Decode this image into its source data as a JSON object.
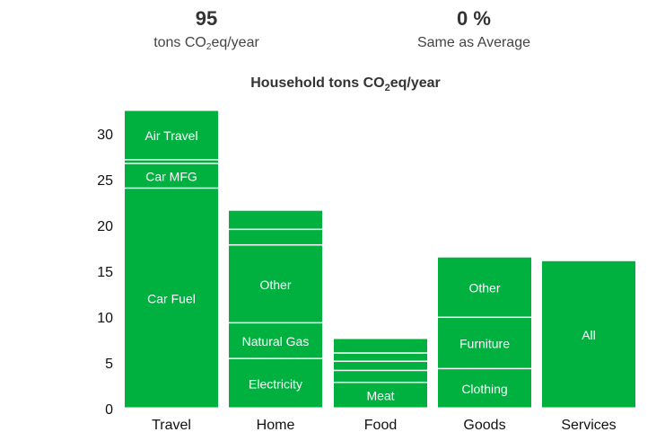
{
  "stats": [
    {
      "value": "95",
      "label_pre": "tons CO",
      "label_sub": "2",
      "label_post": "eq/year"
    },
    {
      "value": "0 %",
      "label": "Same as Average"
    }
  ],
  "chart_data": {
    "type": "bar",
    "stacked": true,
    "title_pre": "Household tons CO",
    "title_sub": "2",
    "title_post": "eq/year",
    "ylim": [
      0,
      33
    ],
    "yticks": [
      0,
      5,
      10,
      15,
      20,
      25,
      30
    ],
    "bar_color": "#00b140",
    "categories": [
      "Travel",
      "Home",
      "Food",
      "Goods",
      "Services"
    ],
    "segments": {
      "Travel": [
        {
          "value": 24.0,
          "label": "Car Fuel"
        },
        {
          "value": 2.7,
          "label": "Car MFG"
        },
        {
          "value": 0.4,
          "label": ""
        },
        {
          "value": 5.4,
          "label": "Air Travel"
        }
      ],
      "Home": [
        {
          "value": 5.4,
          "label": "Electricity"
        },
        {
          "value": 3.9,
          "label": "Natural Gas"
        },
        {
          "value": 8.5,
          "label": "Other"
        },
        {
          "value": 1.7,
          "label": ""
        },
        {
          "value": 2.1,
          "label": ""
        }
      ],
      "Food": [
        {
          "value": 2.8,
          "label": "Meat"
        },
        {
          "value": 1.3,
          "label": ""
        },
        {
          "value": 1.0,
          "label": ""
        },
        {
          "value": 0.9,
          "label": ""
        },
        {
          "value": 1.6,
          "label": ""
        }
      ],
      "Goods": [
        {
          "value": 4.3,
          "label": "Clothing"
        },
        {
          "value": 5.6,
          "label": "Furniture"
        },
        {
          "value": 6.6,
          "label": "Other"
        }
      ],
      "Services": [
        {
          "value": 16.1,
          "label": "All"
        }
      ]
    }
  }
}
